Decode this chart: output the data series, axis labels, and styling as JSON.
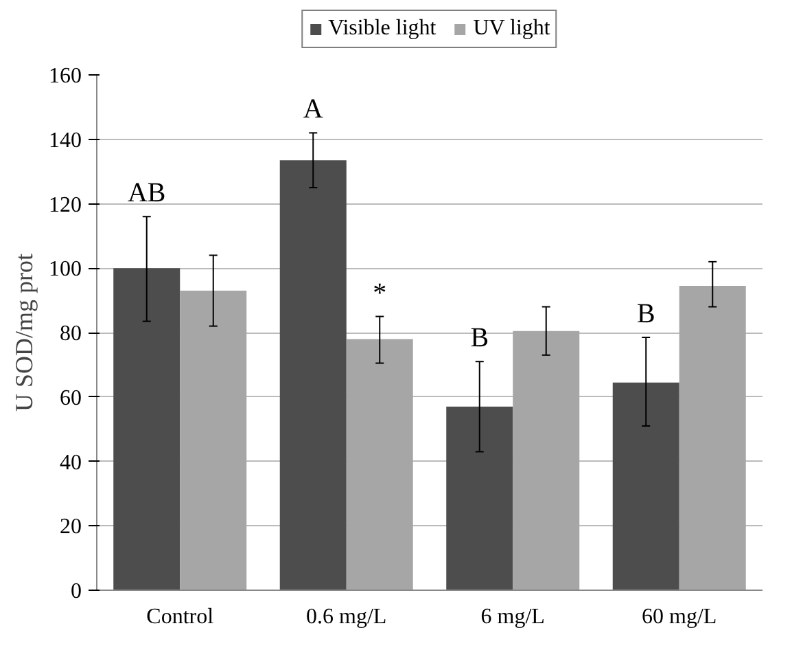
{
  "chart_data": {
    "type": "bar",
    "ylabel": "U SOD/mg prot",
    "categories": [
      "Control",
      "0.6 mg/L",
      "6 mg/L",
      "60 mg/L"
    ],
    "series": [
      {
        "name": "Visible light",
        "color": "#4d4d4d",
        "values": [
          100,
          133.5,
          57,
          64.5
        ],
        "errors": [
          [
            83.5,
            116
          ],
          [
            125,
            142
          ],
          [
            43,
            71
          ],
          [
            51,
            78.5
          ]
        ]
      },
      {
        "name": "UV light",
        "color": "#a6a6a6",
        "values": [
          93,
          78,
          80.5,
          94.5
        ],
        "errors": [
          [
            82,
            104
          ],
          [
            70.5,
            85
          ],
          [
            73,
            88
          ],
          [
            88,
            102
          ]
        ]
      }
    ],
    "ylim": [
      0,
      160
    ],
    "yticks": [
      0,
      20,
      40,
      60,
      80,
      100,
      120,
      140,
      160
    ],
    "grid": "y",
    "legend": "top",
    "annotations": [
      {
        "text": "AB",
        "x": "Control",
        "y": 100
      },
      {
        "text": "A",
        "x": "0.6 mg/L",
        "y": 133.5
      },
      {
        "text": "*",
        "x": "0.6 mg/L",
        "y": 78
      },
      {
        "text": "B",
        "x": "6 mg/L",
        "y": 57
      },
      {
        "text": "B",
        "x": "60 mg/L",
        "y": 64.5
      }
    ]
  }
}
